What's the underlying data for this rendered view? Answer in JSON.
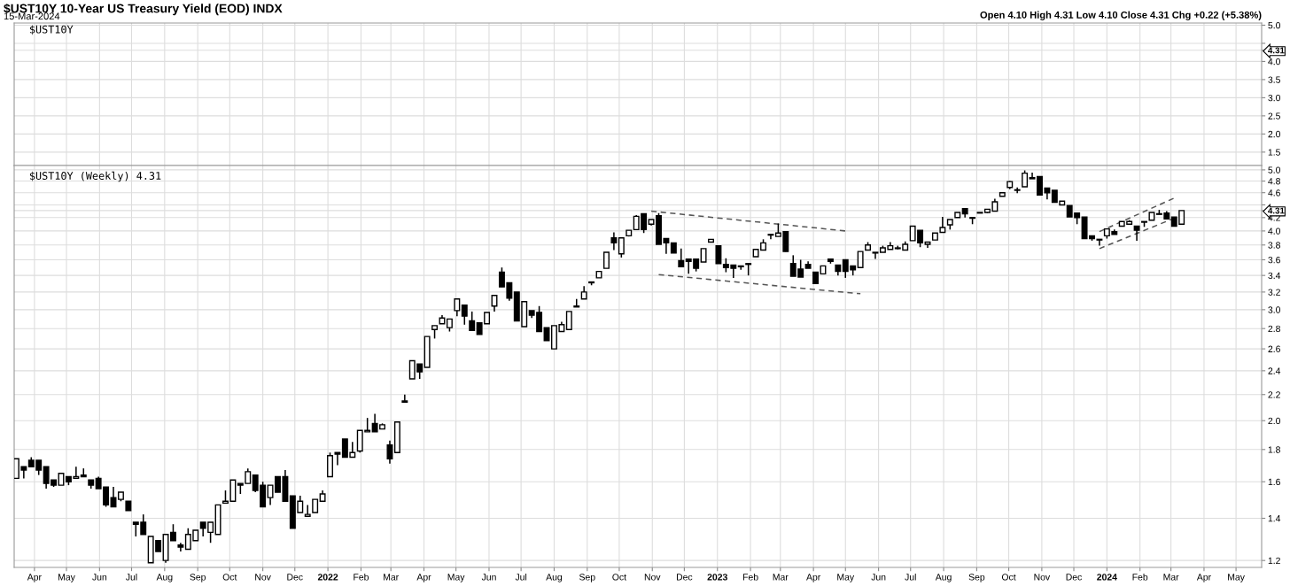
{
  "chart_data": [
    {
      "type": "line",
      "title": "$UST10Y 10-Year US Treasury Yield (EOD) INDX",
      "subtitle": "15-Mar-2024",
      "annotations": [
        "$UST10Y",
        "Open 4.10 High 4.31 Low 4.10 Close 4.31 Chg +0.22 (+5.38%)"
      ],
      "xlim": [
        "2021-03-13",
        "2024-05-25"
      ],
      "xticks": [
        {
          "value": "2021-04-01",
          "label": null
        },
        {
          "value": "2021-05-01",
          "label": null
        },
        {
          "value": "2021-06-01",
          "label": null
        },
        {
          "value": "2021-07-01",
          "label": null
        },
        {
          "value": "2021-08-01",
          "label": null
        },
        {
          "value": "2021-09-01",
          "label": null
        },
        {
          "value": "2021-10-01",
          "label": null
        },
        {
          "value": "2021-11-01",
          "label": null
        },
        {
          "value": "2021-12-01",
          "label": null
        },
        {
          "value": "2022-01-01",
          "label": null
        },
        {
          "value": "2022-02-01",
          "label": null
        },
        {
          "value": "2022-03-01",
          "label": null
        },
        {
          "value": "2022-04-01",
          "label": null
        },
        {
          "value": "2022-05-01",
          "label": null
        },
        {
          "value": "2022-06-01",
          "label": null
        },
        {
          "value": "2022-07-01",
          "label": null
        },
        {
          "value": "2022-08-01",
          "label": null
        },
        {
          "value": "2022-09-01",
          "label": null
        },
        {
          "value": "2022-10-01",
          "label": null
        },
        {
          "value": "2022-11-01",
          "label": null
        },
        {
          "value": "2022-12-01",
          "label": null
        },
        {
          "value": "2023-01-01",
          "label": null
        },
        {
          "value": "2023-02-01",
          "label": null
        },
        {
          "value": "2023-03-01",
          "label": null
        },
        {
          "value": "2023-04-01",
          "label": null
        },
        {
          "value": "2023-05-01",
          "label": null
        },
        {
          "value": "2023-06-01",
          "label": null
        },
        {
          "value": "2023-07-01",
          "label": null
        },
        {
          "value": "2023-08-01",
          "label": null
        },
        {
          "value": "2023-09-01",
          "label": null
        },
        {
          "value": "2023-10-01",
          "label": null
        },
        {
          "value": "2023-11-01",
          "label": null
        },
        {
          "value": "2023-12-01",
          "label": null
        },
        {
          "value": "2024-01-01",
          "label": null
        },
        {
          "value": "2024-02-01",
          "label": null
        },
        {
          "value": "2024-03-01",
          "label": null
        },
        {
          "value": "2024-04-01",
          "label": null
        },
        {
          "value": "2024-05-01",
          "label": null
        }
      ],
      "ylim": [
        1.13,
        5.06
      ],
      "yticks": [
        1.5,
        {
          "value": 2,
          "label": "2.0"
        },
        2.5,
        {
          "value": 3,
          "label": "3.0"
        },
        3.5,
        {
          "value": 4,
          "label": "4.0"
        },
        {
          "value": 4.5,
          "label": null
        },
        {
          "value": 5,
          "label": "5.0"
        },
        4.31
      ],
      "tick_labels": "y",
      "grid": true
    },
    {
      "type": "candlestick",
      "color": "#000000",
      "log": true,
      "annotations": [
        "$UST10Y (Weekly) 4.31"
      ],
      "x": [
        "2021-03-15",
        "2021-03-22",
        "2021-03-29",
        "2021-04-05",
        "2021-04-12",
        "2021-04-19",
        "2021-04-26",
        "2021-05-03",
        "2021-05-10",
        "2021-05-17",
        "2021-05-24",
        "2021-05-31",
        "2021-06-07",
        "2021-06-14",
        "2021-06-21",
        "2021-06-28",
        "2021-07-05",
        "2021-07-12",
        "2021-07-19",
        "2021-07-26",
        "2021-08-02",
        "2021-08-09",
        "2021-08-16",
        "2021-08-23",
        "2021-08-30",
        "2021-09-06",
        "2021-09-13",
        "2021-09-20",
        "2021-09-27",
        "2021-10-04",
        "2021-10-11",
        "2021-10-18",
        "2021-10-25",
        "2021-11-01",
        "2021-11-08",
        "2021-11-15",
        "2021-11-22",
        "2021-11-29",
        "2021-12-06",
        "2021-12-13",
        "2021-12-20",
        "2021-12-27",
        "2022-01-03",
        "2022-01-10",
        "2022-01-17",
        "2022-01-24",
        "2022-01-31",
        "2022-02-07",
        "2022-02-14",
        "2022-02-21",
        "2022-02-28",
        "2022-03-07",
        "2022-03-14",
        "2022-03-21",
        "2022-03-28",
        "2022-04-04",
        "2022-04-11",
        "2022-04-18",
        "2022-04-25",
        "2022-05-02",
        "2022-05-09",
        "2022-05-16",
        "2022-05-23",
        "2022-05-30",
        "2022-06-06",
        "2022-06-13",
        "2022-06-20",
        "2022-06-27",
        "2022-07-04",
        "2022-07-11",
        "2022-07-18",
        "2022-07-25",
        "2022-08-01",
        "2022-08-08",
        "2022-08-15",
        "2022-08-22",
        "2022-08-29",
        "2022-09-05",
        "2022-09-12",
        "2022-09-19",
        "2022-09-26",
        "2022-10-03",
        "2022-10-10",
        "2022-10-17",
        "2022-10-24",
        "2022-10-31",
        "2022-11-07",
        "2022-11-14",
        "2022-11-21",
        "2022-11-28",
        "2022-12-05",
        "2022-12-12",
        "2022-12-19",
        "2022-12-26",
        "2023-01-02",
        "2023-01-09",
        "2023-01-16",
        "2023-01-23",
        "2023-01-30",
        "2023-02-06",
        "2023-02-13",
        "2023-02-20",
        "2023-02-27",
        "2023-03-06",
        "2023-03-13",
        "2023-03-20",
        "2023-03-27",
        "2023-04-03",
        "2023-04-10",
        "2023-04-17",
        "2023-04-24",
        "2023-05-01",
        "2023-05-08",
        "2023-05-15",
        "2023-05-22",
        "2023-05-29",
        "2023-06-05",
        "2023-06-12",
        "2023-06-19",
        "2023-06-26",
        "2023-07-03",
        "2023-07-10",
        "2023-07-17",
        "2023-07-24",
        "2023-07-31",
        "2023-08-07",
        "2023-08-14",
        "2023-08-21",
        "2023-08-28",
        "2023-09-04",
        "2023-09-11",
        "2023-09-18",
        "2023-09-25",
        "2023-10-02",
        "2023-10-09",
        "2023-10-16",
        "2023-10-23",
        "2023-10-30",
        "2023-11-06",
        "2023-11-13",
        "2023-11-20",
        "2023-11-27",
        "2023-12-04",
        "2023-12-11",
        "2023-12-18",
        "2023-12-25",
        "2024-01-01",
        "2024-01-08",
        "2024-01-15",
        "2024-01-22",
        "2024-01-29",
        "2024-02-05",
        "2024-02-12",
        "2024-02-19",
        "2024-02-26",
        "2024-03-04",
        "2024-03-11"
      ],
      "ohlc": [
        [
          1.62,
          1.74,
          1.62,
          1.74
        ],
        [
          1.69,
          1.69,
          1.62,
          1.67
        ],
        [
          1.73,
          1.75,
          1.69,
          1.69
        ],
        [
          1.73,
          1.73,
          1.64,
          1.67
        ],
        [
          1.69,
          1.69,
          1.56,
          1.59
        ],
        [
          1.61,
          1.61,
          1.57,
          1.58
        ],
        [
          1.58,
          1.65,
          1.58,
          1.65
        ],
        [
          1.63,
          1.63,
          1.58,
          1.6
        ],
        [
          1.62,
          1.69,
          1.62,
          1.63
        ],
        [
          1.64,
          1.68,
          1.63,
          1.63
        ],
        [
          1.61,
          1.61,
          1.56,
          1.58
        ],
        [
          1.62,
          1.63,
          1.56,
          1.56
        ],
        [
          1.57,
          1.57,
          1.46,
          1.47
        ],
        [
          1.51,
          1.57,
          1.46,
          1.46
        ],
        [
          1.5,
          1.54,
          1.49,
          1.54
        ],
        [
          1.49,
          1.49,
          1.44,
          1.44
        ],
        [
          1.38,
          1.38,
          1.31,
          1.37
        ],
        [
          1.38,
          1.42,
          1.32,
          1.32
        ],
        [
          1.19,
          1.31,
          1.19,
          1.31
        ],
        [
          1.29,
          1.29,
          1.24,
          1.24
        ],
        [
          1.2,
          1.32,
          1.19,
          1.32
        ],
        [
          1.33,
          1.37,
          1.29,
          1.29
        ],
        [
          1.27,
          1.28,
          1.24,
          1.26
        ],
        [
          1.25,
          1.35,
          1.25,
          1.32
        ],
        [
          1.29,
          1.34,
          1.29,
          1.34
        ],
        [
          1.38,
          1.38,
          1.31,
          1.35
        ],
        [
          1.33,
          1.38,
          1.28,
          1.38
        ],
        [
          1.32,
          1.47,
          1.32,
          1.47
        ],
        [
          1.48,
          1.55,
          1.48,
          1.49
        ],
        [
          1.49,
          1.61,
          1.49,
          1.61
        ],
        [
          1.59,
          1.59,
          1.53,
          1.58
        ],
        [
          1.59,
          1.68,
          1.59,
          1.66
        ],
        [
          1.64,
          1.64,
          1.54,
          1.55
        ],
        [
          1.58,
          1.6,
          1.46,
          1.46
        ],
        [
          1.51,
          1.58,
          1.47,
          1.58
        ],
        [
          1.63,
          1.63,
          1.54,
          1.54
        ],
        [
          1.63,
          1.67,
          1.49,
          1.49
        ],
        [
          1.52,
          1.52,
          1.35,
          1.35
        ],
        [
          1.43,
          1.52,
          1.43,
          1.49
        ],
        [
          1.41,
          1.47,
          1.41,
          1.42
        ],
        [
          1.43,
          1.5,
          1.43,
          1.5
        ],
        [
          1.49,
          1.55,
          1.49,
          1.53
        ],
        [
          1.63,
          1.78,
          1.63,
          1.76
        ],
        [
          1.78,
          1.78,
          1.7,
          1.77
        ],
        [
          1.87,
          1.87,
          1.75,
          1.75
        ],
        [
          1.75,
          1.85,
          1.75,
          1.78
        ],
        [
          1.79,
          1.93,
          1.78,
          1.93
        ],
        [
          1.92,
          2.02,
          1.92,
          1.93
        ],
        [
          1.98,
          2.05,
          1.92,
          1.92
        ],
        [
          1.94,
          1.98,
          1.94,
          1.97
        ],
        [
          1.83,
          1.86,
          1.71,
          1.74
        ],
        [
          1.78,
          1.99,
          1.78,
          1.99
        ],
        [
          2.14,
          2.2,
          2.14,
          2.15
        ],
        [
          2.33,
          2.49,
          2.33,
          2.49
        ],
        [
          2.46,
          2.46,
          2.33,
          2.39
        ],
        [
          2.43,
          2.72,
          2.43,
          2.72
        ],
        [
          2.79,
          2.83,
          2.7,
          2.83
        ],
        [
          2.85,
          2.94,
          2.85,
          2.91
        ],
        [
          2.81,
          2.9,
          2.77,
          2.9
        ],
        [
          2.99,
          3.12,
          2.93,
          3.12
        ],
        [
          3.05,
          3.05,
          2.84,
          2.93
        ],
        [
          2.88,
          2.98,
          2.78,
          2.78
        ],
        [
          2.86,
          2.86,
          2.74,
          2.74
        ],
        [
          2.85,
          2.97,
          2.85,
          2.97
        ],
        [
          3.04,
          3.16,
          2.98,
          3.16
        ],
        [
          3.44,
          3.5,
          3.26,
          3.26
        ],
        [
          3.31,
          3.31,
          3.1,
          3.13
        ],
        [
          3.2,
          3.2,
          2.88,
          2.88
        ],
        [
          2.82,
          3.09,
          2.82,
          3.09
        ],
        [
          2.99,
          2.99,
          2.91,
          2.94
        ],
        [
          2.97,
          3.04,
          2.77,
          2.77
        ],
        [
          2.81,
          2.81,
          2.68,
          2.68
        ],
        [
          2.6,
          2.83,
          2.6,
          2.83
        ],
        [
          2.77,
          2.87,
          2.77,
          2.84
        ],
        [
          2.79,
          2.98,
          2.79,
          2.98
        ],
        [
          3.03,
          3.12,
          3.03,
          3.04
        ],
        [
          3.12,
          3.27,
          3.12,
          3.2
        ],
        [
          3.32,
          3.32,
          3.28,
          3.31
        ],
        [
          3.37,
          3.45,
          3.37,
          3.45
        ],
        [
          3.49,
          3.7,
          3.49,
          3.7
        ],
        [
          3.9,
          3.98,
          3.73,
          3.83
        ],
        [
          3.68,
          3.9,
          3.63,
          3.9
        ],
        [
          3.93,
          4.01,
          3.92,
          4.01
        ],
        [
          4.02,
          4.24,
          4.02,
          4.22
        ],
        [
          4.26,
          4.26,
          3.97,
          4.02
        ],
        [
          4.1,
          4.17,
          4.08,
          4.17
        ],
        [
          4.23,
          4.27,
          3.81,
          3.81
        ],
        [
          3.89,
          3.89,
          3.68,
          3.83
        ],
        [
          3.83,
          3.83,
          3.69,
          3.69
        ],
        [
          3.59,
          3.75,
          3.51,
          3.51
        ],
        [
          3.61,
          3.61,
          3.42,
          3.58
        ],
        [
          3.61,
          3.61,
          3.45,
          3.49
        ],
        [
          3.57,
          3.75,
          3.57,
          3.75
        ],
        [
          3.84,
          3.88,
          3.84,
          3.88
        ],
        [
          3.79,
          3.79,
          3.55,
          3.55
        ],
        [
          3.54,
          3.62,
          3.44,
          3.5
        ],
        [
          3.53,
          3.53,
          3.37,
          3.49
        ],
        [
          3.52,
          3.52,
          3.47,
          3.51
        ],
        [
          3.55,
          3.55,
          3.4,
          3.54
        ],
        [
          3.64,
          3.74,
          3.64,
          3.74
        ],
        [
          3.73,
          3.88,
          3.73,
          3.83
        ],
        [
          3.95,
          3.95,
          3.88,
          3.94
        ],
        [
          3.92,
          4.11,
          3.92,
          3.97
        ],
        [
          3.99,
          3.99,
          3.71,
          3.71
        ],
        [
          3.55,
          3.66,
          3.39,
          3.39
        ],
        [
          3.48,
          3.6,
          3.38,
          3.38
        ],
        [
          3.54,
          3.58,
          3.49,
          3.49
        ],
        [
          3.44,
          3.44,
          3.3,
          3.3
        ],
        [
          3.42,
          3.52,
          3.42,
          3.52
        ],
        [
          3.61,
          3.61,
          3.55,
          3.58
        ],
        [
          3.53,
          3.53,
          3.4,
          3.45
        ],
        [
          3.6,
          3.6,
          3.37,
          3.45
        ],
        [
          3.52,
          3.52,
          3.4,
          3.47
        ],
        [
          3.5,
          3.71,
          3.5,
          3.71
        ],
        [
          3.73,
          3.84,
          3.73,
          3.8
        ],
        [
          3.7,
          3.7,
          3.61,
          3.69
        ],
        [
          3.7,
          3.79,
          3.7,
          3.76
        ],
        [
          3.74,
          3.84,
          3.74,
          3.79
        ],
        [
          3.76,
          3.79,
          3.74,
          3.75
        ],
        [
          3.73,
          3.85,
          3.73,
          3.81
        ],
        [
          3.86,
          4.07,
          3.86,
          4.07
        ],
        [
          4.01,
          4.01,
          3.77,
          3.83
        ],
        [
          3.81,
          3.84,
          3.76,
          3.84
        ],
        [
          3.87,
          3.97,
          3.87,
          3.97
        ],
        [
          3.98,
          4.21,
          3.98,
          4.05
        ],
        [
          4.09,
          4.17,
          4.02,
          4.17
        ],
        [
          4.2,
          4.28,
          4.2,
          4.28
        ],
        [
          4.34,
          4.34,
          4.2,
          4.26
        ],
        [
          4.2,
          4.2,
          4.1,
          4.19
        ],
        [
          4.28,
          4.28,
          4.27,
          4.27
        ],
        [
          4.28,
          4.33,
          4.27,
          4.33
        ],
        [
          4.3,
          4.5,
          4.3,
          4.45
        ],
        [
          4.54,
          4.6,
          4.54,
          4.6
        ],
        [
          4.69,
          4.8,
          4.66,
          4.79
        ],
        [
          4.65,
          4.69,
          4.59,
          4.64
        ],
        [
          4.7,
          4.99,
          4.7,
          4.94
        ],
        [
          4.86,
          4.95,
          4.84,
          4.84
        ],
        [
          4.88,
          4.88,
          4.56,
          4.56
        ],
        [
          4.68,
          4.68,
          4.49,
          4.6
        ],
        [
          4.64,
          4.64,
          4.44,
          4.44
        ],
        [
          4.4,
          4.46,
          4.4,
          4.46
        ],
        [
          4.39,
          4.39,
          4.21,
          4.21
        ],
        [
          4.27,
          4.27,
          4.1,
          4.2
        ],
        [
          4.21,
          4.21,
          3.89,
          3.89
        ],
        [
          3.93,
          3.93,
          3.86,
          3.89
        ],
        [
          3.88,
          3.88,
          3.79,
          3.87
        ],
        [
          3.93,
          4.03,
          3.89,
          4.03
        ],
        [
          3.99,
          4.02,
          3.95,
          3.95
        ],
        [
          4.07,
          4.14,
          4.07,
          4.14
        ],
        [
          4.1,
          4.16,
          4.1,
          4.14
        ],
        [
          4.07,
          4.07,
          3.86,
          4.01
        ],
        [
          4.14,
          4.14,
          4.06,
          4.13
        ],
        [
          4.16,
          4.28,
          4.16,
          4.28
        ],
        [
          4.25,
          4.32,
          4.25,
          4.26
        ],
        [
          4.27,
          4.3,
          4.18,
          4.18
        ],
        [
          4.21,
          4.21,
          4.07,
          4.07
        ],
        [
          4.1,
          4.31,
          4.1,
          4.31
        ]
      ],
      "series": [
        {
          "type": "line",
          "color": "#555555",
          "line_style": "dashed",
          "x": [
            "2022-10-31",
            "2023-05-01"
          ],
          "values": [
            4.3,
            4.0
          ]
        },
        {
          "type": "line",
          "color": "#555555",
          "line_style": "dashed",
          "x": [
            "2022-11-07",
            "2023-05-15"
          ],
          "values": [
            3.41,
            3.18
          ]
        },
        {
          "type": "line",
          "color": "#555555",
          "line_style": "dashed",
          "x": [
            "2023-12-25",
            "2024-03-04"
          ],
          "values": [
            3.99,
            4.51
          ]
        },
        {
          "type": "line",
          "color": "#555555",
          "line_style": "dashed",
          "x": [
            "2023-12-25",
            "2024-03-04"
          ],
          "values": [
            3.75,
            4.19
          ]
        }
      ],
      "xlim": [
        "2021-03-13",
        "2024-05-25"
      ],
      "xticks": [
        {
          "value": "2021-04-01",
          "label": "Apr"
        },
        {
          "value": "2021-05-01",
          "label": "May"
        },
        {
          "value": "2021-06-01",
          "label": "Jun"
        },
        {
          "value": "2021-07-01",
          "label": "Jul"
        },
        {
          "value": "2021-08-01",
          "label": "Aug"
        },
        {
          "value": "2021-09-01",
          "label": "Sep"
        },
        {
          "value": "2021-10-01",
          "label": "Oct"
        },
        {
          "value": "2021-11-01",
          "label": "Nov"
        },
        {
          "value": "2021-12-01",
          "label": "Dec"
        },
        {
          "value": "2022-01-01",
          "label": "2022"
        },
        {
          "value": "2022-02-01",
          "label": "Feb"
        },
        {
          "value": "2022-03-01",
          "label": "Mar"
        },
        {
          "value": "2022-04-01",
          "label": "Apr"
        },
        {
          "value": "2022-05-01",
          "label": "May"
        },
        {
          "value": "2022-06-01",
          "label": "Jun"
        },
        {
          "value": "2022-07-01",
          "label": "Jul"
        },
        {
          "value": "2022-08-01",
          "label": "Aug"
        },
        {
          "value": "2022-09-01",
          "label": "Sep"
        },
        {
          "value": "2022-10-01",
          "label": "Oct"
        },
        {
          "value": "2022-11-01",
          "label": "Nov"
        },
        {
          "value": "2022-12-01",
          "label": "Dec"
        },
        {
          "value": "2023-01-01",
          "label": "2023"
        },
        {
          "value": "2023-02-01",
          "label": "Feb"
        },
        {
          "value": "2023-03-01",
          "label": "Mar"
        },
        {
          "value": "2023-04-01",
          "label": "Apr"
        },
        {
          "value": "2023-05-01",
          "label": "May"
        },
        {
          "value": "2023-06-01",
          "label": "Jun"
        },
        {
          "value": "2023-07-01",
          "label": "Jul"
        },
        {
          "value": "2023-08-01",
          "label": "Aug"
        },
        {
          "value": "2023-09-01",
          "label": "Sep"
        },
        {
          "value": "2023-10-01",
          "label": "Oct"
        },
        {
          "value": "2023-11-01",
          "label": "Nov"
        },
        {
          "value": "2023-12-01",
          "label": "Dec"
        },
        {
          "value": "2024-01-01",
          "label": "2024"
        },
        {
          "value": "2024-02-01",
          "label": "Feb"
        },
        {
          "value": "2024-03-01",
          "label": "Mar"
        },
        {
          "value": "2024-04-01",
          "label": "Apr"
        },
        {
          "value": "2024-05-01",
          "label": "May"
        }
      ],
      "ylim": [
        1.17,
        5.08
      ],
      "yticks": [
        1.2,
        1.4,
        1.6,
        1.8,
        {
          "value": 2,
          "label": "2.0"
        },
        2.2,
        2.4,
        2.6,
        2.8,
        {
          "value": 3,
          "label": "3.0"
        },
        3.2,
        3.4,
        3.6,
        3.8,
        {
          "value": 4,
          "label": "4.0"
        },
        4.2,
        {
          "value": 4.4,
          "label": null
        },
        4.6,
        4.8,
        {
          "value": 5,
          "label": "5.0"
        },
        4.31
      ],
      "grid": true
    }
  ]
}
